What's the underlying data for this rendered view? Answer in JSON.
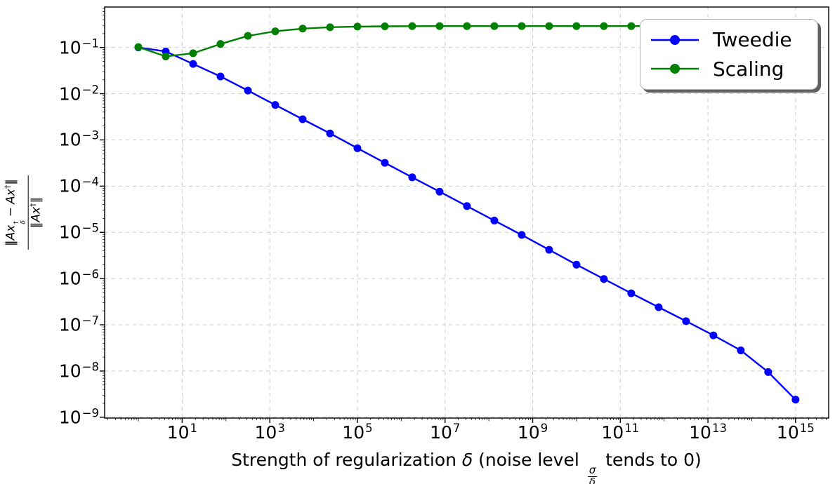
{
  "chart_data": {
    "type": "line",
    "title": "",
    "x_scale": "log",
    "y_scale": "log",
    "xlim": [
      0.17,
      5700000000000000.0
    ],
    "ylim": [
      9.6e-10,
      0.75
    ],
    "grid": true,
    "legend_position": "upper right",
    "x": [
      1,
      4.217,
      17.783,
      74.989,
      316.23,
      1333.5,
      5623.4,
      23714.0,
      100000.0,
      421700.0,
      1778300.0,
      7498900.0,
      31623000.0,
      133350000.0,
      562340000.0,
      2371400000.0,
      10000000000.0,
      42170000000.0,
      177830000000.0,
      749890000000.0,
      3162300000000.0,
      13335000000000.0,
      56234000000000.0,
      237140000000000.0,
      1000000000000000.0
    ],
    "series": [
      {
        "name": "Tweedie",
        "color": "#0000ff",
        "values": [
          0.1,
          0.082,
          0.044,
          0.0236,
          0.0117,
          0.0057,
          0.0028,
          0.00138,
          0.00066,
          0.00032,
          0.000155,
          7.6e-05,
          3.7e-05,
          1.8e-05,
          8.8e-06,
          4.2e-06,
          2e-06,
          9.8e-07,
          4.8e-07,
          2.4e-07,
          1.2e-07,
          5.9e-08,
          2.8e-08,
          9.5e-09,
          2.4e-09
        ]
      },
      {
        "name": "Scaling",
        "color": "#008000",
        "values": [
          0.102,
          0.064,
          0.075,
          0.119,
          0.178,
          0.224,
          0.256,
          0.274,
          0.283,
          0.287,
          0.289,
          0.29,
          0.29,
          0.29,
          0.29,
          0.29,
          0.29,
          0.29,
          0.29,
          0.29,
          0.29,
          0.29,
          0.29,
          0.29,
          0.29
        ]
      }
    ],
    "x_tick_exponents": [
      1,
      3,
      5,
      7,
      9,
      11,
      13,
      15
    ],
    "y_tick_exponents": [
      -1,
      -2,
      -3,
      -4,
      -5,
      -6,
      -7,
      -8,
      -9
    ],
    "tick_base": "10",
    "xlabel_parts": {
      "t1": "Strength of regularization ",
      "delta": "δ",
      "t2": " (noise level ",
      "frac_num": "σ",
      "frac_den": "δ",
      "t3": " tends to 0)"
    },
    "ylabel_parts": {
      "n_open": "‖",
      "n_var": "Ax",
      "n_sup": "†",
      "n_sub": "δ",
      "n_minus": "−",
      "n_var2": "Ax",
      "n_sup2": "†",
      "n_close": "‖",
      "d_open": "‖",
      "d_var": "Ax",
      "d_sup": "†",
      "d_close": "‖"
    },
    "colors": {
      "background": "#ffffff",
      "grid": "#cccccc",
      "spine": "#000000",
      "text": "#000000",
      "tweedie": "#0000ff",
      "scaling": "#008000",
      "legend_border": "#b0b0b0",
      "legend_shadow": "#606060"
    }
  }
}
